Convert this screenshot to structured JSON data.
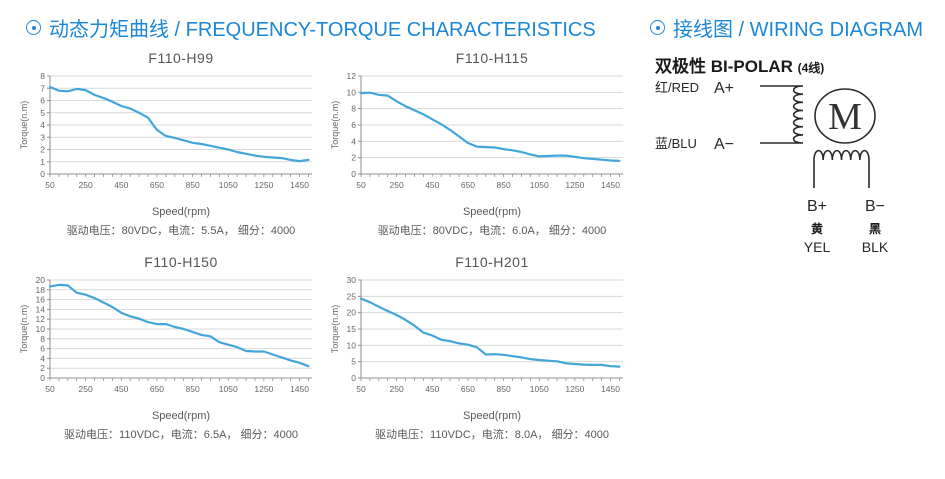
{
  "colors": {
    "accent_blue": "#1b87d8",
    "curve_blue": "#42a6db",
    "grid": "#d9d9d9",
    "axis": "#8f8f8f",
    "tick_text": "#666666",
    "muted_text": "#595959",
    "ink": "#262626"
  },
  "headings": {
    "charts_section": "动态力矩曲线 / FREQUENCY-TORQUE CHARACTERISTICS",
    "wiring_section": "接线图 / WIRING DIAGRAM"
  },
  "wiring_diagram": {
    "subtitle_zh": "双极性",
    "subtitle_en": "BI-POLAR",
    "subtitle_note": "(4线)",
    "motor_label": "M",
    "terminals": {
      "a_plus": {
        "wire_zh": "红/RED",
        "label": "A+"
      },
      "a_minus": {
        "wire_zh": "蓝/BLU",
        "label": "A−"
      },
      "b_plus": {
        "label": "B+",
        "color_zh": "黄",
        "color_en": "YEL"
      },
      "b_minus": {
        "label": "B−",
        "color_zh": "黑",
        "color_en": "BLK"
      }
    }
  },
  "chart_data": [
    {
      "type": "line",
      "title": "F110-H99",
      "xlabel": "Speed(rpm)",
      "ylabel": "Torque(n.m)",
      "caption": "驱动电压：80VDC，电流：5.5A， 细分：4000",
      "xlim": [
        50,
        1500
      ],
      "ylim": [
        0,
        8
      ],
      "ytick_step": 1,
      "xticks_major": [
        50,
        250,
        450,
        650,
        850,
        1050,
        1250,
        1450
      ],
      "xtick_minor_step": 50,
      "grid": true,
      "legend": false,
      "x": [
        50,
        100,
        150,
        200,
        250,
        300,
        350,
        400,
        450,
        500,
        550,
        600,
        650,
        700,
        750,
        800,
        850,
        900,
        950,
        1000,
        1050,
        1100,
        1150,
        1200,
        1250,
        1300,
        1350,
        1400,
        1450,
        1500
      ],
      "values": [
        7.1,
        6.8,
        6.75,
        6.95,
        6.85,
        6.45,
        6.2,
        5.9,
        5.55,
        5.35,
        5.0,
        4.6,
        3.6,
        3.1,
        2.95,
        2.75,
        2.55,
        2.45,
        2.3,
        2.15,
        2.0,
        1.8,
        1.65,
        1.5,
        1.4,
        1.35,
        1.3,
        1.15,
        1.05,
        1.15
      ]
    },
    {
      "type": "line",
      "title": "F110-H115",
      "xlabel": "Speed(rpm)",
      "ylabel": "Torque(n.m)",
      "caption": "驱动电压：80VDC，电流：6.0A， 细分：4000",
      "xlim": [
        50,
        1500
      ],
      "ylim": [
        0,
        12
      ],
      "ytick_step": 2,
      "xticks_major": [
        50,
        250,
        450,
        650,
        850,
        1050,
        1250,
        1450
      ],
      "xtick_minor_step": 50,
      "grid": true,
      "legend": false,
      "x": [
        50,
        100,
        150,
        200,
        250,
        300,
        350,
        400,
        450,
        500,
        550,
        600,
        650,
        700,
        750,
        800,
        850,
        900,
        950,
        1000,
        1050,
        1100,
        1150,
        1200,
        1250,
        1300,
        1350,
        1400,
        1450,
        1500
      ],
      "values": [
        9.9,
        9.95,
        9.7,
        9.6,
        8.9,
        8.3,
        7.8,
        7.3,
        6.7,
        6.1,
        5.4,
        4.6,
        3.8,
        3.35,
        3.3,
        3.25,
        3.05,
        2.9,
        2.7,
        2.4,
        2.15,
        2.2,
        2.25,
        2.25,
        2.1,
        1.95,
        1.85,
        1.75,
        1.65,
        1.6
      ]
    },
    {
      "type": "line",
      "title": "F110-H150",
      "xlabel": "Speed(rpm)",
      "ylabel": "Torque(n.m)",
      "caption": "驱动电压：110VDC，电流：6.5A， 细分：4000",
      "xlim": [
        50,
        1500
      ],
      "ylim": [
        0,
        20
      ],
      "ytick_step": 2,
      "xticks_major": [
        50,
        250,
        450,
        650,
        850,
        1050,
        1250,
        1450
      ],
      "xtick_minor_step": 50,
      "grid": true,
      "legend": false,
      "x": [
        50,
        100,
        150,
        200,
        250,
        300,
        350,
        400,
        450,
        500,
        550,
        600,
        650,
        700,
        750,
        800,
        850,
        900,
        950,
        1000,
        1050,
        1100,
        1150,
        1200,
        1250,
        1300,
        1350,
        1400,
        1450,
        1500
      ],
      "values": [
        18.7,
        19.0,
        18.9,
        17.4,
        17.0,
        16.3,
        15.4,
        14.5,
        13.3,
        12.6,
        12.1,
        11.4,
        11.0,
        11.0,
        10.4,
        10.0,
        9.4,
        8.8,
        8.5,
        7.3,
        6.8,
        6.3,
        5.5,
        5.4,
        5.4,
        4.8,
        4.2,
        3.6,
        3.1,
        2.4
      ]
    },
    {
      "type": "line",
      "title": "F110-H201",
      "xlabel": "Speed(rpm)",
      "ylabel": "Torque(n.m)",
      "caption": "驱动电压：110VDC，电流：8.0A， 细分：4000",
      "xlim": [
        50,
        1500
      ],
      "ylim": [
        0,
        30
      ],
      "ytick_step": 5,
      "xticks_major": [
        50,
        250,
        450,
        650,
        850,
        1050,
        1250,
        1450
      ],
      "xtick_minor_step": 50,
      "grid": true,
      "legend": false,
      "x": [
        50,
        100,
        150,
        200,
        250,
        300,
        350,
        400,
        450,
        500,
        550,
        600,
        650,
        700,
        750,
        800,
        850,
        900,
        950,
        1000,
        1050,
        1100,
        1150,
        1200,
        1250,
        1300,
        1350,
        1400,
        1450,
        1500
      ],
      "values": [
        24.3,
        23.2,
        21.8,
        20.5,
        19.3,
        17.8,
        16.0,
        13.9,
        13.0,
        11.7,
        11.3,
        10.6,
        10.2,
        9.4,
        7.2,
        7.3,
        7.1,
        6.7,
        6.3,
        5.8,
        5.5,
        5.3,
        5.1,
        4.5,
        4.3,
        4.1,
        4.0,
        4.0,
        3.6,
        3.5
      ]
    }
  ]
}
